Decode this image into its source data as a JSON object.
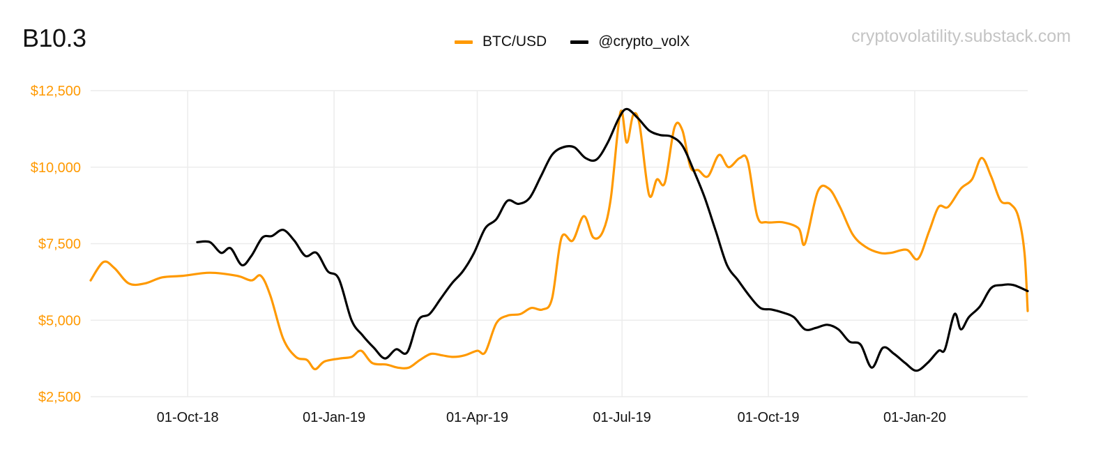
{
  "title": "B10.3",
  "watermark": "cryptovolatility.substack.com",
  "colors": {
    "btc": "#ff9900",
    "vol": "#000000",
    "yaxis_text": "#ff9900",
    "grid": "#ececec"
  },
  "legend": [
    {
      "label": "BTC/USD",
      "color": "#ff9900"
    },
    {
      "label": "@crypto_volX",
      "color": "#000000"
    }
  ],
  "chart_data": {
    "type": "line",
    "x_axis": {
      "type": "date",
      "range": [
        "2018-08-01",
        "2020-03-12"
      ],
      "ticks": [
        "01-Oct-18",
        "01-Jan-19",
        "01-Apr-19",
        "01-Jul-19",
        "01-Oct-19",
        "01-Jan-20"
      ],
      "tick_dates": [
        "2018-10-01",
        "2019-01-01",
        "2019-04-01",
        "2019-07-01",
        "2019-10-01",
        "2020-01-01"
      ]
    },
    "y_axis": {
      "ylim": [
        2500,
        12500
      ],
      "ticks": [
        "$2,500",
        "$5,000",
        "$7,500",
        "$10,000",
        "$12,500"
      ],
      "tick_values": [
        2500,
        5000,
        7500,
        10000,
        12500
      ]
    },
    "grid": true,
    "legend_position": "top-center",
    "series": [
      {
        "name": "BTC/USD",
        "color": "#ff9900",
        "points": [
          [
            "2018-08-01",
            6300
          ],
          [
            "2018-08-09",
            6900
          ],
          [
            "2018-08-16",
            6700
          ],
          [
            "2018-08-25",
            6200
          ],
          [
            "2018-09-04",
            6200
          ],
          [
            "2018-09-15",
            6400
          ],
          [
            "2018-09-28",
            6450
          ],
          [
            "2018-10-15",
            6550
          ],
          [
            "2018-11-01",
            6450
          ],
          [
            "2018-11-10",
            6300
          ],
          [
            "2018-11-16",
            6450
          ],
          [
            "2018-11-22",
            5800
          ],
          [
            "2018-11-30",
            4400
          ],
          [
            "2018-12-08",
            3800
          ],
          [
            "2018-12-15",
            3700
          ],
          [
            "2018-12-20",
            3400
          ],
          [
            "2018-12-26",
            3650
          ],
          [
            "2019-01-05",
            3750
          ],
          [
            "2019-01-12",
            3800
          ],
          [
            "2019-01-18",
            4000
          ],
          [
            "2019-01-25",
            3600
          ],
          [
            "2019-02-03",
            3550
          ],
          [
            "2019-02-10",
            3450
          ],
          [
            "2019-02-17",
            3450
          ],
          [
            "2019-02-24",
            3700
          ],
          [
            "2019-03-03",
            3900
          ],
          [
            "2019-03-10",
            3850
          ],
          [
            "2019-03-17",
            3800
          ],
          [
            "2019-03-24",
            3850
          ],
          [
            "2019-04-01",
            4000
          ],
          [
            "2019-04-06",
            3950
          ],
          [
            "2019-04-13",
            4900
          ],
          [
            "2019-04-20",
            5150
          ],
          [
            "2019-04-28",
            5200
          ],
          [
            "2019-05-05",
            5400
          ],
          [
            "2019-05-12",
            5350
          ],
          [
            "2019-05-18",
            5700
          ],
          [
            "2019-05-24",
            7700
          ],
          [
            "2019-05-31",
            7600
          ],
          [
            "2019-06-07",
            8400
          ],
          [
            "2019-06-13",
            7700
          ],
          [
            "2019-06-19",
            7900
          ],
          [
            "2019-06-24",
            9000
          ],
          [
            "2019-06-30",
            11800
          ],
          [
            "2019-07-04",
            10800
          ],
          [
            "2019-07-08",
            11700
          ],
          [
            "2019-07-12",
            11400
          ],
          [
            "2019-07-18",
            9100
          ],
          [
            "2019-07-23",
            9600
          ],
          [
            "2019-07-28",
            9500
          ],
          [
            "2019-08-03",
            11300
          ],
          [
            "2019-08-08",
            11200
          ],
          [
            "2019-08-13",
            10000
          ],
          [
            "2019-08-18",
            9900
          ],
          [
            "2019-08-24",
            9700
          ],
          [
            "2019-08-31",
            10400
          ],
          [
            "2019-09-06",
            10000
          ],
          [
            "2019-09-13",
            10300
          ],
          [
            "2019-09-18",
            10200
          ],
          [
            "2019-09-24",
            8400
          ],
          [
            "2019-09-30",
            8200
          ],
          [
            "2019-10-10",
            8200
          ],
          [
            "2019-10-20",
            8000
          ],
          [
            "2019-10-24",
            7500
          ],
          [
            "2019-11-01",
            9200
          ],
          [
            "2019-11-08",
            9300
          ],
          [
            "2019-11-15",
            8700
          ],
          [
            "2019-11-23",
            7800
          ],
          [
            "2019-12-01",
            7400
          ],
          [
            "2019-12-10",
            7200
          ],
          [
            "2019-12-17",
            7200
          ],
          [
            "2019-12-27",
            7300
          ],
          [
            "2020-01-03",
            7000
          ],
          [
            "2020-01-10",
            7900
          ],
          [
            "2020-01-16",
            8700
          ],
          [
            "2020-01-22",
            8700
          ],
          [
            "2020-01-30",
            9300
          ],
          [
            "2020-02-06",
            9600
          ],
          [
            "2020-02-12",
            10300
          ],
          [
            "2020-02-18",
            9700
          ],
          [
            "2020-02-24",
            8900
          ],
          [
            "2020-03-01",
            8800
          ],
          [
            "2020-03-06",
            8400
          ],
          [
            "2020-03-10",
            7200
          ],
          [
            "2020-03-12",
            5300
          ]
        ]
      },
      {
        "name": "@crypto_volX",
        "color": "#000000",
        "points": [
          [
            "2018-10-07",
            7550
          ],
          [
            "2018-10-15",
            7550
          ],
          [
            "2018-10-22",
            7200
          ],
          [
            "2018-10-28",
            7350
          ],
          [
            "2018-11-04",
            6800
          ],
          [
            "2018-11-10",
            7100
          ],
          [
            "2018-11-17",
            7700
          ],
          [
            "2018-11-23",
            7750
          ],
          [
            "2018-11-30",
            7950
          ],
          [
            "2018-12-07",
            7600
          ],
          [
            "2018-12-14",
            7100
          ],
          [
            "2018-12-21",
            7200
          ],
          [
            "2018-12-28",
            6600
          ],
          [
            "2019-01-04",
            6350
          ],
          [
            "2019-01-12",
            5000
          ],
          [
            "2019-01-19",
            4500
          ],
          [
            "2019-01-26",
            4100
          ],
          [
            "2019-02-02",
            3750
          ],
          [
            "2019-02-09",
            4050
          ],
          [
            "2019-02-16",
            3950
          ],
          [
            "2019-02-23",
            5000
          ],
          [
            "2019-03-02",
            5200
          ],
          [
            "2019-03-09",
            5700
          ],
          [
            "2019-03-16",
            6200
          ],
          [
            "2019-03-23",
            6600
          ],
          [
            "2019-03-30",
            7200
          ],
          [
            "2019-04-06",
            8000
          ],
          [
            "2019-04-13",
            8300
          ],
          [
            "2019-04-20",
            8900
          ],
          [
            "2019-04-27",
            8800
          ],
          [
            "2019-05-04",
            9000
          ],
          [
            "2019-05-11",
            9700
          ],
          [
            "2019-05-18",
            10400
          ],
          [
            "2019-05-25",
            10650
          ],
          [
            "2019-06-01",
            10650
          ],
          [
            "2019-06-08",
            10300
          ],
          [
            "2019-06-15",
            10250
          ],
          [
            "2019-06-22",
            10800
          ],
          [
            "2019-06-29",
            11600
          ],
          [
            "2019-07-04",
            11900
          ],
          [
            "2019-07-11",
            11600
          ],
          [
            "2019-07-18",
            11200
          ],
          [
            "2019-07-25",
            11050
          ],
          [
            "2019-08-01",
            11000
          ],
          [
            "2019-08-08",
            10700
          ],
          [
            "2019-08-15",
            9900
          ],
          [
            "2019-08-22",
            9000
          ],
          [
            "2019-08-29",
            7900
          ],
          [
            "2019-09-05",
            6800
          ],
          [
            "2019-09-12",
            6300
          ],
          [
            "2019-09-19",
            5800
          ],
          [
            "2019-09-26",
            5400
          ],
          [
            "2019-10-03",
            5350
          ],
          [
            "2019-10-10",
            5250
          ],
          [
            "2019-10-17",
            5100
          ],
          [
            "2019-10-24",
            4700
          ],
          [
            "2019-10-31",
            4750
          ],
          [
            "2019-11-07",
            4850
          ],
          [
            "2019-11-14",
            4700
          ],
          [
            "2019-11-21",
            4300
          ],
          [
            "2019-11-28",
            4200
          ],
          [
            "2019-12-05",
            3450
          ],
          [
            "2019-12-12",
            4100
          ],
          [
            "2019-12-19",
            3900
          ],
          [
            "2019-12-26",
            3600
          ],
          [
            "2020-01-02",
            3350
          ],
          [
            "2020-01-09",
            3600
          ],
          [
            "2020-01-16",
            4000
          ],
          [
            "2020-01-20",
            4050
          ],
          [
            "2020-01-26",
            5200
          ],
          [
            "2020-01-30",
            4700
          ],
          [
            "2020-02-04",
            5100
          ],
          [
            "2020-02-11",
            5450
          ],
          [
            "2020-02-18",
            6050
          ],
          [
            "2020-02-25",
            6150
          ],
          [
            "2020-03-03",
            6150
          ],
          [
            "2020-03-12",
            5950
          ]
        ]
      }
    ]
  }
}
